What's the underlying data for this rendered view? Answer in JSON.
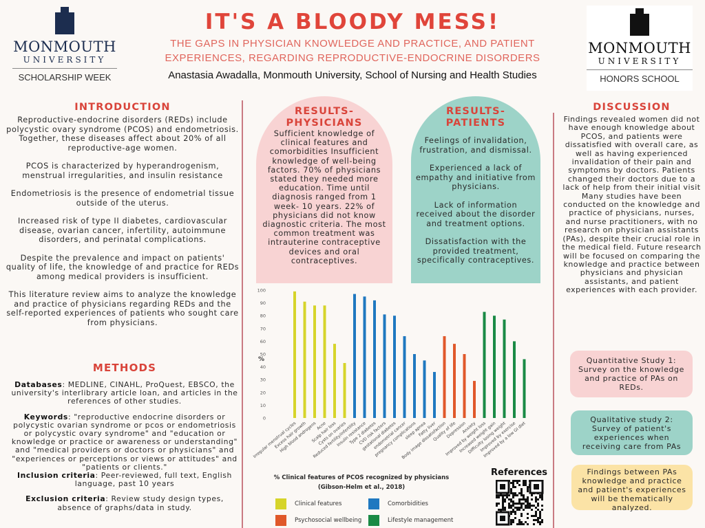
{
  "header": {
    "title": "IT'S A BLOODY MESS!",
    "subtitle_line1": "THE GAPS IN PHYSICIAN KNOWLEDGE AND PRACTICE, AND PATIENT",
    "subtitle_line2": "EXPERIENCES, REGARDING REPRODUCTIVE-ENDOCRINE DISORDERS",
    "author": "Anastasia Awadalla, Monmouth University, School of Nursing and Health Studies"
  },
  "logo_left": {
    "name": "MONMOUTH",
    "university": "UNIVERSITY",
    "program": "SCHOLARSHIP WEEK"
  },
  "logo_right": {
    "name": "MONMOUTH",
    "university": "UNIVERSITY",
    "program": "HONORS SCHOOL"
  },
  "introduction": {
    "heading": "INTRODUCTION",
    "paragraphs": [
      "Reproductive-endocrine disorders (REDs) include polycystic ovary syndrome (PCOS) and endometriosis. Together, these diseases affect about 20% of all reproductive-age women.",
      "PCOS is characterized by hyperandrogenism, menstrual irregularities, and insulin resistance",
      "Endometriosis is the presence of endometrial tissue outside of the uterus.",
      "Increased risk of type II diabetes, cardiovascular disease, ovarian cancer, infertility, autoimmune disorders, and perinatal complications.",
      "Despite the prevalence and impact on patients' quality of life, the knowledge of and practice for REDs among medical providers is insufficient.",
      "This literature review aims to analyze the knowledge and practice of physicians regarding REDs and the self-reported experiences of patients who sought care from physicians."
    ]
  },
  "methods": {
    "heading": "METHODS",
    "databases_label": "Databases",
    "databases": ": MEDLINE, CINAHL, ProQuest, EBSCO, the university's interlibrary article loan, and articles in the references of other studies.",
    "keywords_label": "Keywords",
    "keywords": ": \"reproductive endocrine disorders or polycystic ovarian syndrome or pcos or endometriosis or polycystic ovary syndrome\" and \"education or knowledge or practice or awareness or understanding\" and \"medical providers or doctors or physicians\" and \"experiences or perceptions or views or attitudes\" and \"patients or clients.\"",
    "inclusion_label": "Inclusion criteria",
    "inclusion": ": Peer-reviewed, full text, English language, past 10 years",
    "exclusion_label": "Exclusion criteria",
    "exclusion": ": Review study design types, absence of graphs/data in study."
  },
  "results_physicians": {
    "heading1": "RESULTS-",
    "heading2": "PHYSICIANS",
    "text": "Sufficient knowledge of clinical features and comorbidities Insufficient knowledge of well-being factors. 70% of physicians stated they needed more education. Time until diagnosis ranged from 1 week- 10 years. 22% of physicians did not know diagnostic criteria. The most common treatment was intrauterine contraceptive devices and oral contraceptives."
  },
  "results_patients": {
    "heading1": "RESULTS-",
    "heading2": "PATIENTS",
    "paragraphs": [
      "Feelings of invalidation, frustration, and dismissal.",
      "Experienced a lack of empathy and initiative from physicians.",
      "Lack of information received about the disorder and treatment options.",
      "Dissatisfaction with the provided treatment, specifically contraceptives."
    ]
  },
  "discussion": {
    "heading": "DISCUSSION",
    "text": "Findings revealed women did not have enough knowledge about PCOS, and patients were dissatisfied with overall care, as well as having experienced invalidation of their pain and symptoms by doctors. Patients changed their doctors due to a lack of help from their initial visit Many studies have been conducted on the knowledge and practice of physicians, nurses, and nurse practitioners, with no research on physician assistants (PAs), despite their crucial role in the medical field. Future research will be focused on comparing the knowledge and practice between physicians and physician assistants, and patient experiences with each provider.",
    "boxes": [
      {
        "text": "Quantitative Study 1: Survey on the knowledge and practice of PAs on REDs.",
        "color": "#f8d3d3"
      },
      {
        "text": "Qualitative study 2: Survey of patient's experiences when receiving care from PAs",
        "color": "#9dd3c8"
      },
      {
        "text": "Findings between PAs knowledge and practice and patient's experiences will be thematically analyzed.",
        "color": "#fbe3a6"
      }
    ]
  },
  "references": {
    "heading": "References",
    "qr_icon": "qr-code"
  },
  "chart_data": {
    "type": "bar",
    "title": "% Clinical features of PCOS  recognized by physicians (Gibson-Helm et al., 2018)",
    "ylabel": "%",
    "ylim": [
      0,
      100
    ],
    "yticks": [
      0,
      10,
      20,
      30,
      40,
      50,
      60,
      70,
      80,
      90,
      100
    ],
    "grid": false,
    "categories": [
      "Irregular menstrual cycles",
      "Excess hair growth",
      "High blood androgens",
      "Acne",
      "Scalp hair loss",
      "Cysts on ovaries",
      "Reduced fertility/infertility",
      "Insulin resistance",
      "Type 2 diabetes",
      "CVD risk factors",
      "gestational diabetes",
      "endometrial cancer",
      "pregnancy complications",
      "sleep apnea",
      "Fatty liver",
      "Body image dissatisfaction",
      "Quality of life",
      "Depression",
      "Anxiety",
      "Improved by weight loss",
      "Increased weight gain",
      "Difficulty losing weight",
      "Improved by exercise",
      "Improved by a low GI diet"
    ],
    "values": [
      99,
      91,
      88,
      88,
      58,
      43,
      97,
      95,
      92,
      81,
      80,
      64,
      50,
      45,
      36,
      64,
      58,
      50,
      29,
      83,
      80,
      77,
      60,
      46
    ],
    "groups": [
      0,
      0,
      0,
      0,
      0,
      0,
      1,
      1,
      1,
      1,
      1,
      1,
      1,
      1,
      1,
      2,
      2,
      2,
      2,
      3,
      3,
      3,
      3,
      3
    ],
    "legend": [
      {
        "name": "Clinical features",
        "color": "#d6d42a"
      },
      {
        "name": "Comorbidities",
        "color": "#1f78c0"
      },
      {
        "name": "Psychosocial wellbeing",
        "color": "#e0582a"
      },
      {
        "name": "Lifestyle management",
        "color": "#1a8a45"
      }
    ],
    "legend_position": "bottom"
  }
}
